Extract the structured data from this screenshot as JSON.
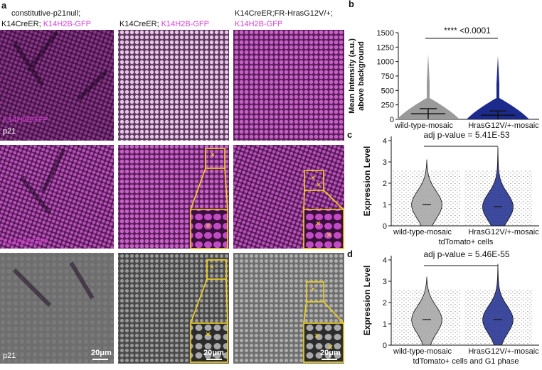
{
  "panel_a": {
    "label": "a",
    "headers": [
      {
        "line1": "constitutive-p21null;",
        "line2_black": "K14CreER;",
        "line2_magenta": "K14H2B-GFP"
      },
      {
        "line2_black": "K14CreER;",
        "line2_magenta": "K14H2B-GFP"
      },
      {
        "line1": "K14CreER;FR-HrasG12V/+;",
        "line2_magenta": "K14H2B-GFP"
      }
    ],
    "channel_labels": {
      "merged": [
        "K14H2BGFP",
        "p21"
      ],
      "gfp": "K14H2BGFP",
      "p21": "p21"
    },
    "scale_bar": "20μm"
  },
  "chart_data": [
    {
      "type": "dot",
      "panel_label": "b",
      "y_label": [
        "Mean Intensity (a.u.)",
        "above background"
      ],
      "annotation": "**** <0.0001",
      "categories": [
        "wild-type-mosaic",
        "HrasG12V/+-mosaic"
      ],
      "colors": [
        "#9a9a9a",
        "#1c2a8c"
      ],
      "values": [
        95,
        70
      ],
      "errors": [
        90,
        75
      ],
      "max": [
        1130,
        1100
      ],
      "ylim": [
        0,
        1500
      ],
      "yticks": [
        0,
        250,
        500,
        750,
        1000,
        1250,
        1500
      ]
    },
    {
      "type": "violin",
      "panel_label": "c",
      "y_label": "Expression Level",
      "annotation": "adj p-value = 5.41E-53",
      "x_label": "tdTomato+ cells",
      "categories": [
        "wild-type-mosaic",
        "HrasG12V/+-mosaic"
      ],
      "colors": [
        "#a3a3a3",
        "#1c2a8c"
      ],
      "median": [
        1.0,
        0.9
      ],
      "max": [
        3.1,
        3.7
      ],
      "ylim": [
        0,
        4.2
      ],
      "yticks": [
        0,
        1,
        2,
        3,
        4
      ]
    },
    {
      "type": "violin",
      "panel_label": "d",
      "y_label": "Expression Level",
      "annotation": "adj p-value = 5.46E-55",
      "x_label": "tdTomato+ cells and G1 phase",
      "categories": [
        "wild-type-mosaic",
        "HrasG12V/+-mosaic"
      ],
      "colors": [
        "#a3a3a3",
        "#1c2a8c"
      ],
      "median": [
        1.2,
        1.2
      ],
      "max": [
        3.2,
        3.8
      ],
      "ylim": [
        0,
        4.2
      ],
      "yticks": [
        0,
        1,
        2,
        3,
        4
      ]
    }
  ]
}
